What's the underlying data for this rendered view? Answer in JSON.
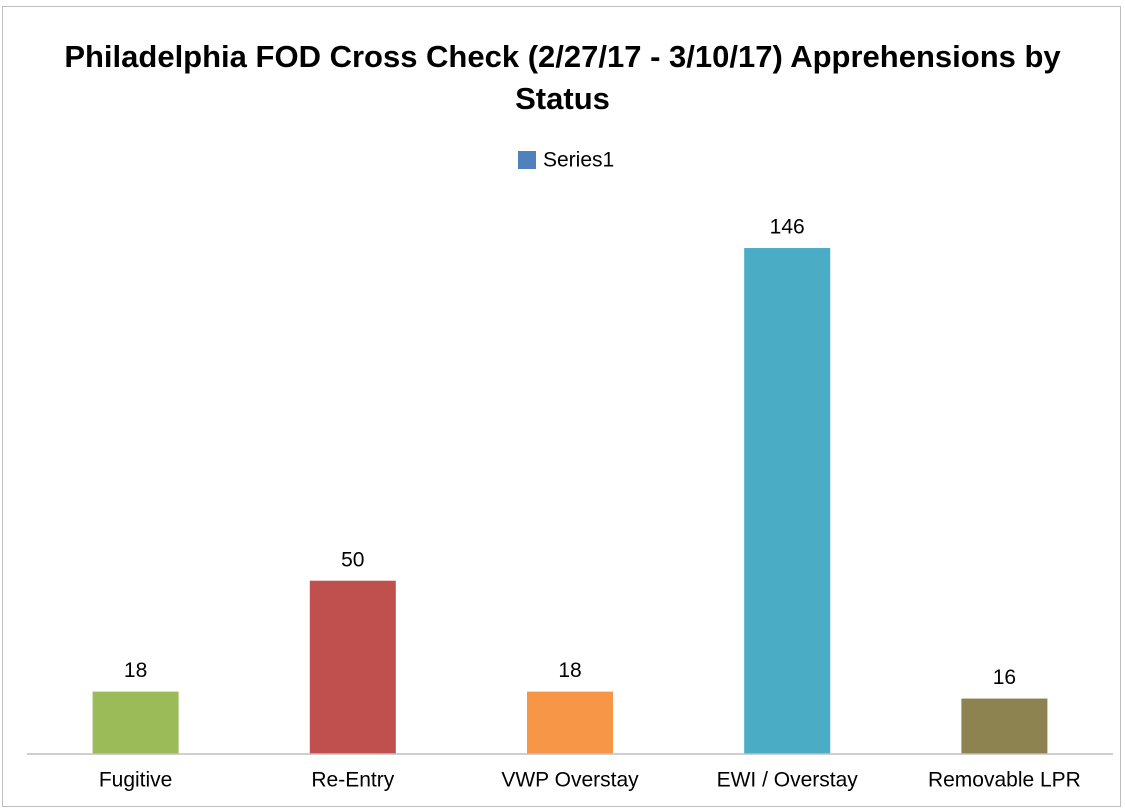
{
  "chart_data": {
    "type": "bar",
    "title": "Philadelphia FOD Cross Check (2/27/17 - 3/10/17) Apprehensions by Status",
    "categories": [
      "Fugitive",
      "Re-Entry",
      "VWP Overstay",
      "EWI / Overstay",
      "Removable LPR"
    ],
    "series": [
      {
        "name": "Series1",
        "color": "#4f81bd",
        "values": [
          18,
          50,
          18,
          146,
          16
        ],
        "colors": [
          "#9bbb59",
          "#c0504d",
          "#f79646",
          "#4bacc6",
          "#8c8350"
        ]
      }
    ],
    "ylim": [
      0,
      160
    ],
    "legend": "top"
  }
}
